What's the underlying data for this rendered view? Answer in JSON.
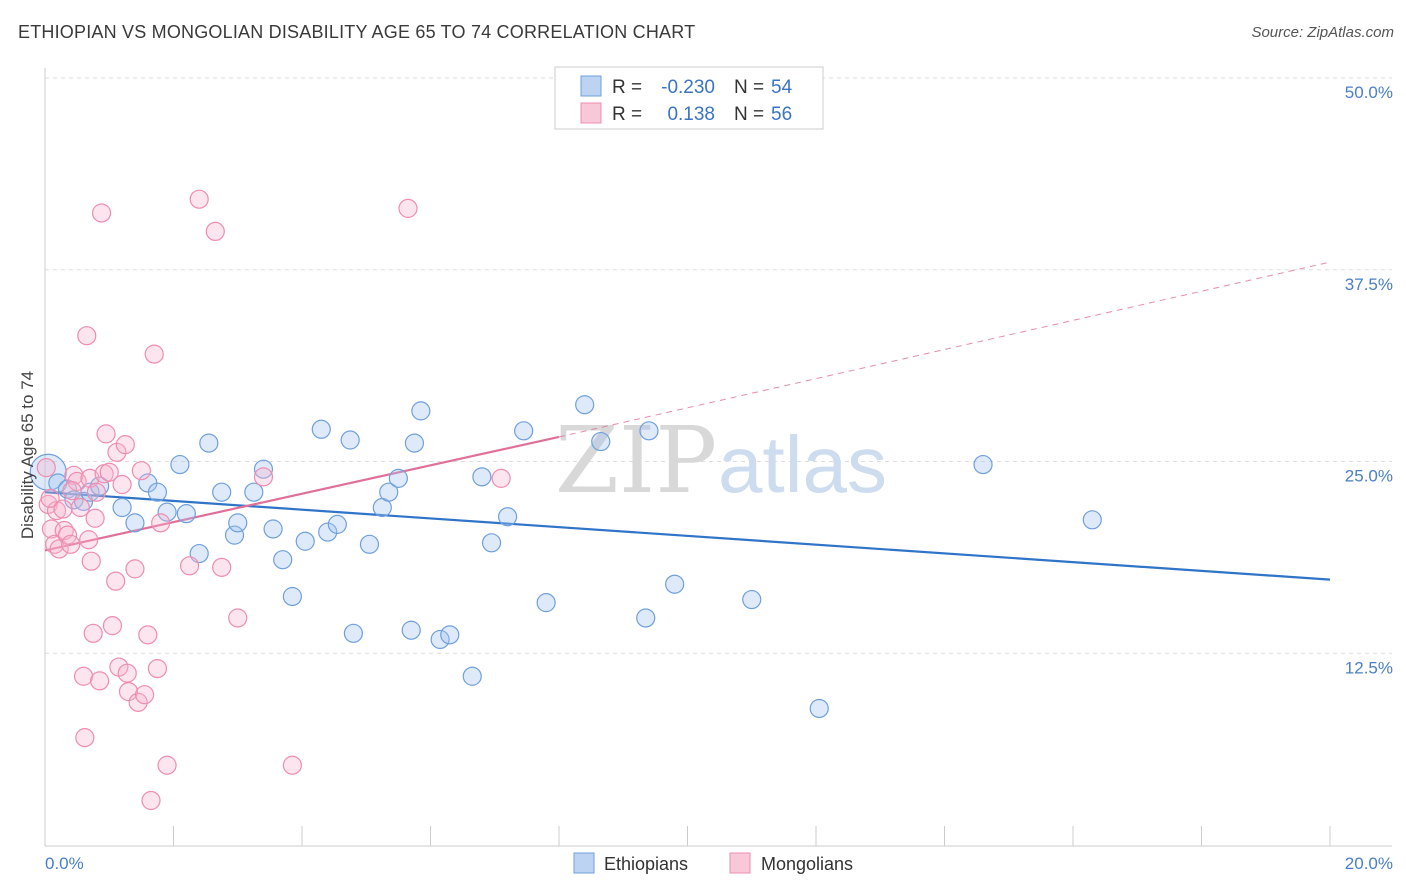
{
  "title": "ETHIOPIAN VS MONGOLIAN DISABILITY AGE 65 TO 74 CORRELATION CHART",
  "source": "Source: ZipAtlas.com",
  "watermark": {
    "zip": "ZIP",
    "atlas": "atlas"
  },
  "colors": {
    "ethiopians": "#6fa0de",
    "ethiopians_line": "#2f74c8",
    "mongolians": "#f08cb0",
    "mongolians_line": "#e0709a"
  },
  "legend": {
    "rows": [
      {
        "r_label": "R =",
        "r_value": "-0.230",
        "n_label": "N =",
        "n_value": "54"
      },
      {
        "r_label": "R =",
        "r_value": "0.138",
        "n_label": "N =",
        "n_value": "56"
      }
    ]
  },
  "chart_data": {
    "type": "scatter",
    "title": "ETHIOPIAN VS MONGOLIAN DISABILITY AGE 65 TO 74 CORRELATION CHART",
    "xlabel": "",
    "ylabel": "Disability Age 65 to 74",
    "xlim": [
      0,
      20
    ],
    "ylim": [
      0,
      50
    ],
    "x_ticks": [
      "0.0%",
      "20.0%"
    ],
    "y_ticks": [
      {
        "value": 12.5,
        "label": "12.5%"
      },
      {
        "value": 25.0,
        "label": "25.0%"
      },
      {
        "value": 37.5,
        "label": "37.5%"
      },
      {
        "value": 50.0,
        "label": "50.0%"
      }
    ],
    "grid": true,
    "legend_position": "top-center",
    "series": [
      {
        "name": "Ethiopians",
        "r": -0.23,
        "n": 54,
        "trend": {
          "x": [
            0,
            20
          ],
          "y": [
            23.0,
            17.3
          ],
          "extrapolated_x": [
            20,
            20
          ],
          "extrapolated_y": [
            17.3,
            17.3
          ]
        },
        "points": [
          [
            0.05,
            24.3
          ],
          [
            0.2,
            23.6
          ],
          [
            0.35,
            23.2
          ],
          [
            0.45,
            22.5
          ],
          [
            0.6,
            22.4
          ],
          [
            0.7,
            23.0
          ],
          [
            0.85,
            23.4
          ],
          [
            1.2,
            22.0
          ],
          [
            1.4,
            21.0
          ],
          [
            1.6,
            23.6
          ],
          [
            1.75,
            23.0
          ],
          [
            1.9,
            21.7
          ],
          [
            2.1,
            24.8
          ],
          [
            2.2,
            21.6
          ],
          [
            2.4,
            19.0
          ],
          [
            2.55,
            26.2
          ],
          [
            2.75,
            23.0
          ],
          [
            2.95,
            20.2
          ],
          [
            3.0,
            21.0
          ],
          [
            3.25,
            23.0
          ],
          [
            3.4,
            24.5
          ],
          [
            3.55,
            20.6
          ],
          [
            3.7,
            18.6
          ],
          [
            3.85,
            16.2
          ],
          [
            4.05,
            19.8
          ],
          [
            4.3,
            27.1
          ],
          [
            4.4,
            20.4
          ],
          [
            4.55,
            20.9
          ],
          [
            4.75,
            26.4
          ],
          [
            4.8,
            13.8
          ],
          [
            5.05,
            19.6
          ],
          [
            5.25,
            22.0
          ],
          [
            5.35,
            23.0
          ],
          [
            5.5,
            23.9
          ],
          [
            5.7,
            14.0
          ],
          [
            5.75,
            26.2
          ],
          [
            5.85,
            28.3
          ],
          [
            6.15,
            13.4
          ],
          [
            6.3,
            13.7
          ],
          [
            6.65,
            11.0
          ],
          [
            6.8,
            24.0
          ],
          [
            6.95,
            19.7
          ],
          [
            7.2,
            21.4
          ],
          [
            7.45,
            27.0
          ],
          [
            7.8,
            15.8
          ],
          [
            8.4,
            28.7
          ],
          [
            8.65,
            26.3
          ],
          [
            9.35,
            14.8
          ],
          [
            9.4,
            27.0
          ],
          [
            9.8,
            17.0
          ],
          [
            11.0,
            16.0
          ],
          [
            12.05,
            8.9
          ],
          [
            14.6,
            24.8
          ],
          [
            16.3,
            21.2
          ]
        ]
      },
      {
        "name": "Mongolians",
        "r": 0.138,
        "n": 56,
        "trend": {
          "x": [
            0,
            8
          ],
          "y": [
            19.2,
            26.6
          ],
          "extrapolated_x": [
            8,
            20
          ],
          "extrapolated_y": [
            26.6,
            38.0
          ]
        },
        "points": [
          [
            0.02,
            24.6
          ],
          [
            0.05,
            22.2
          ],
          [
            0.1,
            20.6
          ],
          [
            0.15,
            19.6
          ],
          [
            0.18,
            21.8
          ],
          [
            0.22,
            19.3
          ],
          [
            0.3,
            20.5
          ],
          [
            0.35,
            20.2
          ],
          [
            0.4,
            19.6
          ],
          [
            0.45,
            24.1
          ],
          [
            0.5,
            23.7
          ],
          [
            0.55,
            22.0
          ],
          [
            0.6,
            11.0
          ],
          [
            0.62,
            7.0
          ],
          [
            0.65,
            33.2
          ],
          [
            0.7,
            23.9
          ],
          [
            0.72,
            18.5
          ],
          [
            0.75,
            13.8
          ],
          [
            0.78,
            21.3
          ],
          [
            0.8,
            23.0
          ],
          [
            0.85,
            10.7
          ],
          [
            0.88,
            41.2
          ],
          [
            0.92,
            24.2
          ],
          [
            0.95,
            26.8
          ],
          [
            1.0,
            24.3
          ],
          [
            1.05,
            14.3
          ],
          [
            1.1,
            17.2
          ],
          [
            1.12,
            25.6
          ],
          [
            1.15,
            11.6
          ],
          [
            1.2,
            23.5
          ],
          [
            1.25,
            26.1
          ],
          [
            1.28,
            11.2
          ],
          [
            1.3,
            10.0
          ],
          [
            1.4,
            18.0
          ],
          [
            1.45,
            9.3
          ],
          [
            1.5,
            24.4
          ],
          [
            1.55,
            9.8
          ],
          [
            1.6,
            13.7
          ],
          [
            1.65,
            2.9
          ],
          [
            1.7,
            32.0
          ],
          [
            1.75,
            11.5
          ],
          [
            1.8,
            21.0
          ],
          [
            1.9,
            5.2
          ],
          [
            2.25,
            18.2
          ],
          [
            2.4,
            42.1
          ],
          [
            2.65,
            40.0
          ],
          [
            2.75,
            18.1
          ],
          [
            3.0,
            14.8
          ],
          [
            3.4,
            24.0
          ],
          [
            3.85,
            5.2
          ],
          [
            5.65,
            41.5
          ],
          [
            7.1,
            23.9
          ],
          [
            0.08,
            22.6
          ],
          [
            0.28,
            21.9
          ],
          [
            0.42,
            23.1
          ],
          [
            0.68,
            19.9
          ]
        ]
      }
    ]
  },
  "bottom_legend": [
    {
      "label": "Ethiopians"
    },
    {
      "label": "Mongolians"
    }
  ]
}
